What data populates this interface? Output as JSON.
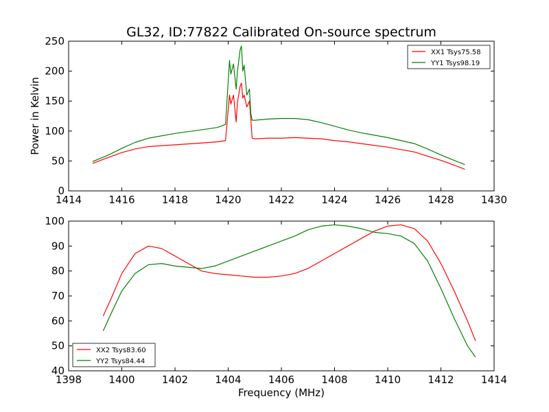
{
  "chart_data": [
    {
      "type": "line",
      "title": "GL32, ID:77822 Calibrated On-source spectrum",
      "xlabel": "",
      "ylabel": "Power in Kelvin",
      "xlim": [
        1414,
        1430
      ],
      "ylim": [
        0,
        250
      ],
      "xticks": [
        1414,
        1416,
        1418,
        1420,
        1422,
        1424,
        1426,
        1428,
        1430
      ],
      "yticks": [
        0,
        50,
        100,
        150,
        200,
        250
      ],
      "grid": false,
      "legend_position": "top-right",
      "series": [
        {
          "name": "XX1 Tsys75.58",
          "color": "#ff0000",
          "x": [
            1414.9,
            1415.5,
            1416.0,
            1416.5,
            1417.0,
            1418.0,
            1419.0,
            1419.6,
            1419.9,
            1420.05,
            1420.1,
            1420.2,
            1420.3,
            1420.35,
            1420.45,
            1420.5,
            1420.55,
            1420.6,
            1420.7,
            1420.8,
            1420.85,
            1420.9,
            1421.0,
            1421.5,
            1422.0,
            1422.5,
            1423.0,
            1423.5,
            1424.0,
            1424.5,
            1425.0,
            1425.5,
            1426.0,
            1426.5,
            1427.0,
            1427.5,
            1428.0,
            1428.5,
            1428.9
          ],
          "values": [
            46,
            56,
            64,
            70,
            74,
            77,
            80,
            82,
            84,
            160,
            145,
            160,
            115,
            148,
            175,
            180,
            155,
            160,
            140,
            150,
            120,
            88,
            87,
            88,
            88,
            89,
            88,
            87,
            84,
            82,
            79,
            76,
            73,
            69,
            65,
            58,
            51,
            43,
            36
          ]
        },
        {
          "name": "YY1 Tsys98.19",
          "color": "#008000",
          "x": [
            1414.9,
            1415.5,
            1416.0,
            1416.5,
            1417.0,
            1418.0,
            1419.0,
            1419.6,
            1419.9,
            1420.05,
            1420.1,
            1420.2,
            1420.3,
            1420.35,
            1420.45,
            1420.5,
            1420.55,
            1420.6,
            1420.7,
            1420.8,
            1420.85,
            1420.9,
            1421.0,
            1421.5,
            1422.0,
            1422.5,
            1423.0,
            1423.5,
            1424.0,
            1424.5,
            1425.0,
            1425.5,
            1426.0,
            1426.5,
            1427.0,
            1427.5,
            1428.0,
            1428.5,
            1428.9
          ],
          "values": [
            49,
            60,
            71,
            81,
            88,
            96,
            102,
            106,
            111,
            218,
            195,
            212,
            170,
            200,
            236,
            242,
            200,
            210,
            160,
            170,
            130,
            118,
            118,
            120,
            121,
            121,
            119,
            114,
            108,
            102,
            97,
            93,
            89,
            84,
            79,
            70,
            60,
            51,
            44
          ]
        }
      ]
    },
    {
      "type": "line",
      "title": "",
      "xlabel": "Frequency (MHz)",
      "ylabel": "",
      "xlim": [
        1398,
        1414
      ],
      "ylim": [
        40,
        100
      ],
      "xticks": [
        1398,
        1400,
        1402,
        1404,
        1406,
        1408,
        1410,
        1412,
        1414
      ],
      "yticks": [
        40,
        50,
        60,
        70,
        80,
        90,
        100
      ],
      "grid": false,
      "legend_position": "bottom-left",
      "series": [
        {
          "name": "XX2 Tsys83.60",
          "color": "#ff0000",
          "x": [
            1399.3,
            1399.6,
            1400.0,
            1400.5,
            1401.0,
            1401.5,
            1402.0,
            1402.5,
            1403.0,
            1403.5,
            1404.0,
            1404.5,
            1405.0,
            1405.5,
            1406.0,
            1406.5,
            1407.0,
            1407.5,
            1408.0,
            1408.5,
            1409.0,
            1409.5,
            1410.0,
            1410.5,
            1411.0,
            1411.5,
            1412.0,
            1412.5,
            1413.0,
            1413.3
          ],
          "values": [
            62,
            69,
            79,
            87,
            90,
            89,
            86,
            83,
            80,
            79,
            78.5,
            78,
            77.5,
            77.5,
            78,
            79,
            81,
            84,
            87,
            90,
            93,
            96,
            98,
            98.5,
            97,
            92,
            83,
            72,
            60,
            52
          ]
        },
        {
          "name": "YY2 Tsys84.44",
          "color": "#008000",
          "x": [
            1399.3,
            1399.6,
            1400.0,
            1400.5,
            1401.0,
            1401.5,
            1402.0,
            1402.5,
            1403.0,
            1403.5,
            1404.0,
            1404.5,
            1405.0,
            1405.5,
            1406.0,
            1406.5,
            1407.0,
            1407.5,
            1408.0,
            1408.5,
            1409.0,
            1409.5,
            1410.0,
            1410.5,
            1411.0,
            1411.5,
            1412.0,
            1412.5,
            1413.0,
            1413.3
          ],
          "values": [
            56,
            63,
            72,
            79,
            82.5,
            83,
            82,
            81.5,
            81,
            82,
            84,
            86,
            88,
            90,
            92,
            94,
            96.5,
            98,
            98.5,
            98,
            97,
            95.5,
            95,
            94,
            91,
            84,
            73,
            61,
            50,
            45.5
          ]
        }
      ]
    }
  ]
}
